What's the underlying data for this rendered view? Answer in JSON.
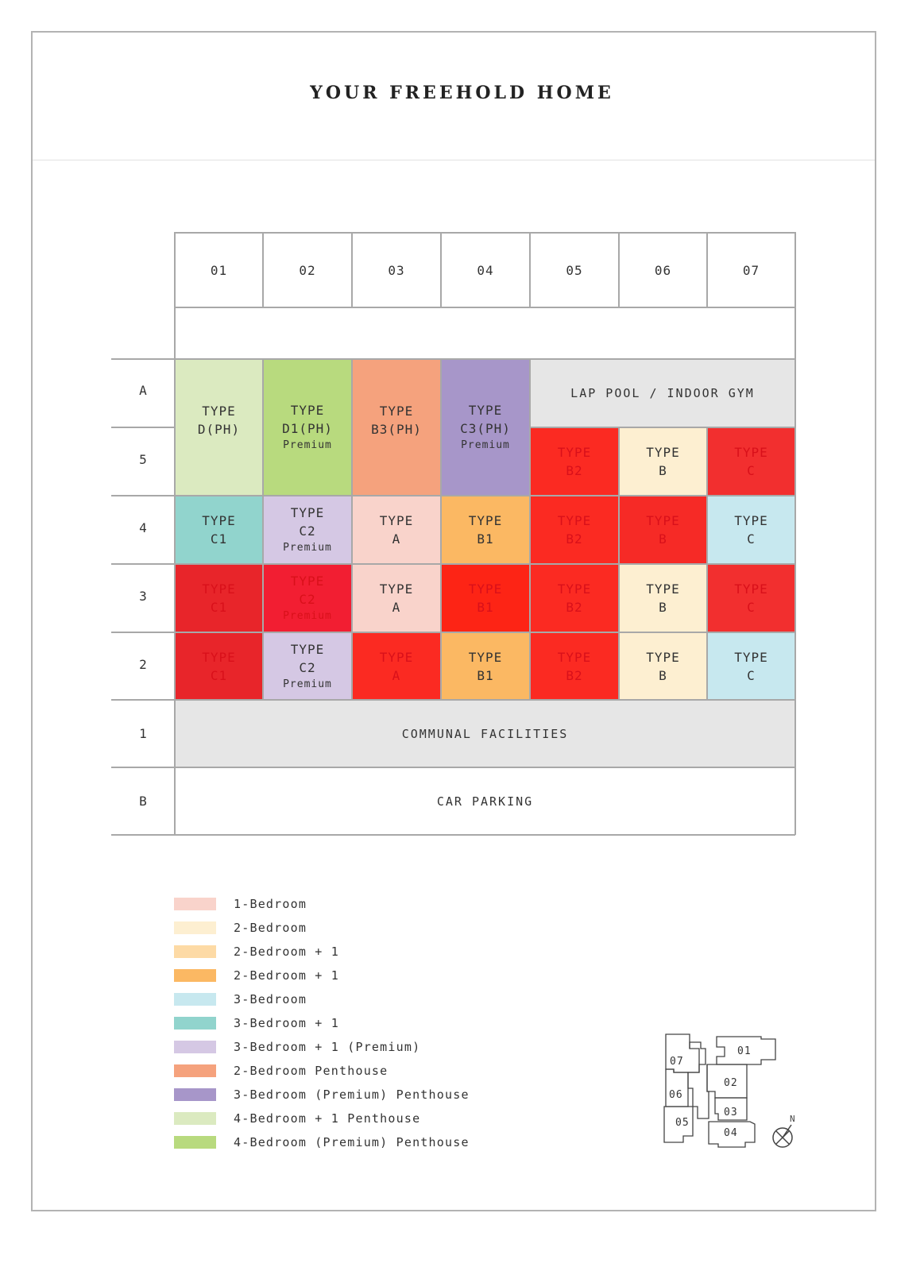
{
  "title": "YOUR FREEHOLD HOME",
  "columns": [
    "01",
    "02",
    "03",
    "04",
    "05",
    "06",
    "07"
  ],
  "rows": [
    "A",
    "5",
    "4",
    "3",
    "2",
    "1",
    "B"
  ],
  "colors": {
    "one_bed": "#f9d3cb",
    "two_bed": "#fdefd1",
    "two_bed_plus1_light": "#fddaa5",
    "two_bed_plus1": "#fbb863",
    "three_bed": "#c7e8ef",
    "three_bed_plus1": "#91d4cd",
    "three_bed_plus1_premium": "#d5c8e4",
    "two_bed_penthouse": "#f5a27d",
    "three_bed_premium_penthouse": "#a796c9",
    "four_bed_plus1_penthouse": "#dbeac0",
    "four_bed_premium_penthouse": "#b8da7e",
    "sold_red": "#f22a25",
    "facility_grey": "#e6e6e6"
  },
  "units": {
    "d_ph": {
      "l1": "TYPE",
      "l2": "D(PH)"
    },
    "d1_ph": {
      "l1": "TYPE",
      "l2": "D1(PH)",
      "l3": "Premium"
    },
    "b3_ph": {
      "l1": "TYPE",
      "l2": "B3(PH)"
    },
    "c3_ph": {
      "l1": "TYPE",
      "l2": "C3(PH)",
      "l3": "Premium"
    },
    "r5_05": {
      "l1": "TYPE",
      "l2": "B2"
    },
    "r5_06": {
      "l1": "TYPE",
      "l2": "B"
    },
    "r5_07": {
      "l1": "TYPE",
      "l2": "C"
    },
    "r4_01": {
      "l1": "TYPE",
      "l2": "C1"
    },
    "r4_02": {
      "l1": "TYPE",
      "l2": "C2",
      "l3": "Premium"
    },
    "r4_03": {
      "l1": "TYPE",
      "l2": "A"
    },
    "r4_04": {
      "l1": "TYPE",
      "l2": "B1"
    },
    "r4_05": {
      "l1": "TYPE",
      "l2": "B2"
    },
    "r4_06": {
      "l1": "TYPE",
      "l2": "B"
    },
    "r4_07": {
      "l1": "TYPE",
      "l2": "C"
    },
    "r3_01": {
      "l1": "TYPE",
      "l2": "C1"
    },
    "r3_02": {
      "l1": "TYPE",
      "l2": "C2",
      "l3": "Premium"
    },
    "r3_03": {
      "l1": "TYPE",
      "l2": "A"
    },
    "r3_04": {
      "l1": "TYPE",
      "l2": "B1"
    },
    "r3_05": {
      "l1": "TYPE",
      "l2": "B2"
    },
    "r3_06": {
      "l1": "TYPE",
      "l2": "B"
    },
    "r3_07": {
      "l1": "TYPE",
      "l2": "C"
    },
    "r2_01": {
      "l1": "TYPE",
      "l2": "C1"
    },
    "r2_02": {
      "l1": "TYPE",
      "l2": "C2",
      "l3": "Premium"
    },
    "r2_03": {
      "l1": "TYPE",
      "l2": "A"
    },
    "r2_04": {
      "l1": "TYPE",
      "l2": "B1"
    },
    "r2_05": {
      "l1": "TYPE",
      "l2": "B2"
    },
    "r2_06": {
      "l1": "TYPE",
      "l2": "B"
    },
    "r2_07": {
      "l1": "TYPE",
      "l2": "C"
    }
  },
  "facilities": {
    "lap_pool": "LAP POOL / INDOOR GYM",
    "communal": "COMMUNAL FACILITIES",
    "parking": "CAR PARKING"
  },
  "legend": [
    {
      "label": "1-Bedroom"
    },
    {
      "label": "2-Bedroom"
    },
    {
      "label": "2-Bedroom + 1"
    },
    {
      "label": "2-Bedroom + 1"
    },
    {
      "label": "3-Bedroom"
    },
    {
      "label": "3-Bedroom + 1"
    },
    {
      "label": "3-Bedroom + 1 (Premium)"
    },
    {
      "label": "2-Bedroom Penthouse"
    },
    {
      "label": "3-Bedroom (Premium) Penthouse"
    },
    {
      "label": "4-Bedroom + 1 Penthouse"
    },
    {
      "label": "4-Bedroom (Premium) Penthouse"
    }
  ],
  "key_plan": {
    "units": [
      "01",
      "02",
      "03",
      "04",
      "05",
      "06",
      "07"
    ],
    "north": "N"
  }
}
